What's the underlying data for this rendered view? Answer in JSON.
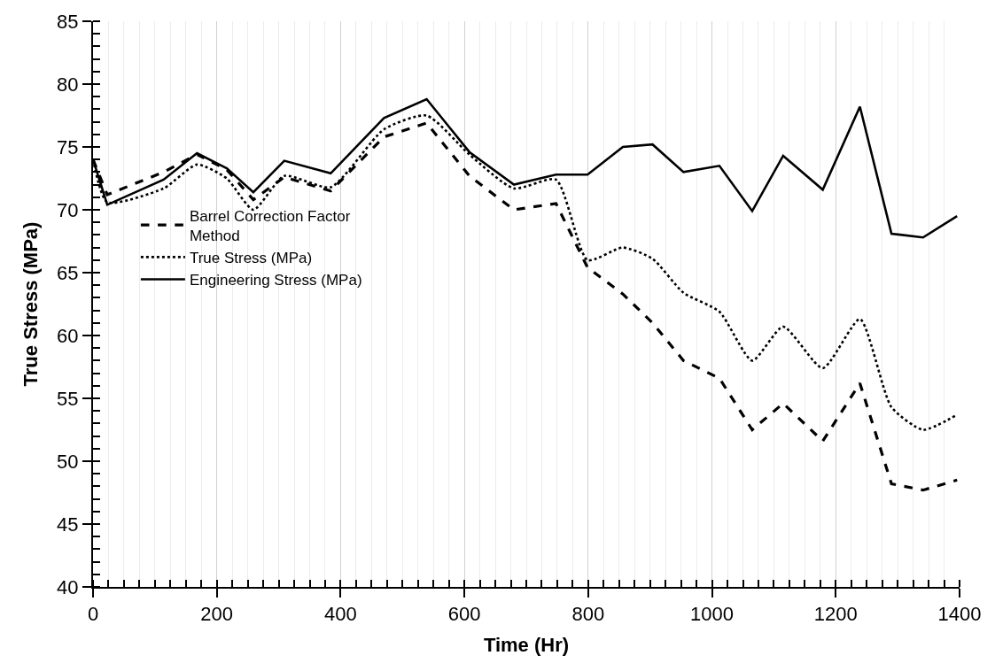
{
  "chart_data": {
    "type": "line",
    "xlabel": "Time (Hr)",
    "ylabel": "True Stress (MPa)",
    "x": [
      0,
      23,
      114,
      168,
      216,
      259,
      309,
      384,
      470,
      539,
      608,
      680,
      748,
      799,
      856,
      904,
      954,
      1012,
      1065,
      1115,
      1179,
      1239,
      1290,
      1341,
      1396
    ],
    "series": [
      {
        "name": "Barrel Correction Factor Method",
        "color": "#000000",
        "line_style": "dashed",
        "values": [
          74.0,
          71.2,
          73.0,
          74.4,
          73.2,
          70.8,
          72.6,
          71.5,
          75.8,
          76.9,
          72.7,
          70.0,
          70.5,
          65.4,
          63.3,
          61.0,
          58.0,
          56.6,
          52.5,
          54.6,
          51.6,
          56.2,
          48.2,
          47.7,
          48.5
        ]
      },
      {
        "name": "True Stress (MPa)",
        "color": "#000000",
        "line_style": "dotted",
        "values": [
          74.0,
          70.6,
          71.7,
          73.6,
          72.5,
          70.0,
          72.7,
          71.8,
          76.4,
          77.5,
          74.4,
          71.7,
          72.4,
          66.0,
          67.0,
          66.1,
          63.4,
          61.9,
          58.0,
          60.7,
          57.4,
          61.3,
          54.3,
          52.5,
          53.7
        ]
      },
      {
        "name": "Engineering Stress (MPa)",
        "color": "#000000",
        "line_style": "solid",
        "values": [
          74.0,
          70.4,
          72.4,
          74.5,
          73.3,
          71.4,
          73.9,
          72.9,
          77.3,
          78.8,
          74.6,
          72.0,
          72.8,
          72.8,
          75.0,
          75.2,
          73.0,
          73.5,
          69.9,
          74.3,
          71.6,
          78.2,
          68.1,
          67.8,
          69.5
        ]
      }
    ],
    "xlim": [
      0,
      1400
    ],
    "xticks": [
      0,
      200,
      400,
      600,
      800,
      1000,
      1200,
      1400
    ],
    "ylim": [
      40,
      85
    ],
    "yticks": [
      40,
      45,
      50,
      55,
      60,
      65,
      70,
      75,
      80,
      85
    ],
    "grid": "x",
    "legend": "left",
    "marker": "none"
  }
}
